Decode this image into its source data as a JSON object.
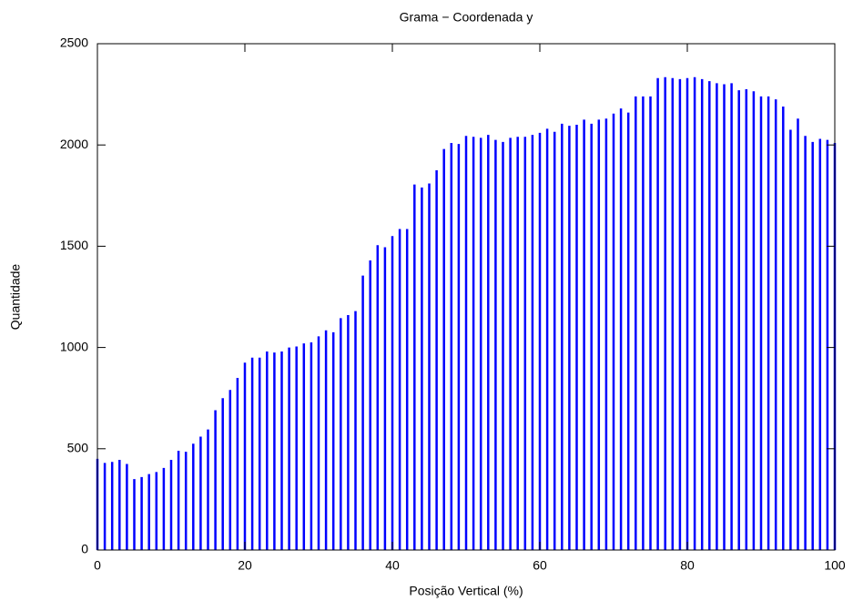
{
  "chart_data": {
    "type": "impulse",
    "title": "Grama − Coordenada y",
    "x_label": "Posição Vertical (%)",
    "y_label": "Quantidade",
    "color": "#0000ff",
    "x": [
      0,
      1,
      2,
      3,
      4,
      5,
      6,
      7,
      8,
      9,
      10,
      11,
      12,
      13,
      14,
      15,
      16,
      17,
      18,
      19,
      20,
      21,
      22,
      23,
      24,
      25,
      26,
      27,
      28,
      29,
      30,
      31,
      32,
      33,
      34,
      35,
      36,
      37,
      38,
      39,
      40,
      41,
      42,
      43,
      44,
      45,
      46,
      47,
      48,
      49,
      50,
      51,
      52,
      53,
      54,
      55,
      56,
      57,
      58,
      59,
      60,
      61,
      62,
      63,
      64,
      65,
      66,
      67,
      68,
      69,
      70,
      71,
      72,
      73,
      74,
      75,
      76,
      77,
      78,
      79,
      80,
      81,
      82,
      83,
      84,
      85,
      86,
      87,
      88,
      89,
      90,
      91,
      92,
      93,
      94,
      95,
      96,
      97,
      98,
      99,
      100
    ],
    "values": [
      450,
      430,
      435,
      445,
      425,
      350,
      360,
      375,
      385,
      405,
      445,
      490,
      485,
      525,
      560,
      595,
      690,
      750,
      790,
      850,
      925,
      950,
      950,
      980,
      975,
      980,
      1000,
      1005,
      1020,
      1025,
      1055,
      1085,
      1075,
      1145,
      1160,
      1180,
      1355,
      1430,
      1505,
      1495,
      1550,
      1585,
      1585,
      1805,
      1790,
      1810,
      1875,
      1980,
      2010,
      2005,
      2045,
      2040,
      2035,
      2050,
      2025,
      2015,
      2035,
      2040,
      2040,
      2050,
      2060,
      2080,
      2065,
      2105,
      2095,
      2100,
      2125,
      2105,
      2125,
      2130,
      2155,
      2180,
      2160,
      2240,
      2240,
      2240,
      2330,
      2335,
      2330,
      2325,
      2330,
      2335,
      2325,
      2315,
      2305,
      2300,
      2305,
      2270,
      2275,
      2265,
      2240,
      2240,
      2225,
      2190,
      2075,
      2130,
      2045,
      2015,
      2030,
      2025,
      2010
    ],
    "xlim": [
      0,
      100
    ],
    "xticks": [
      0,
      20,
      40,
      60,
      80,
      100
    ],
    "ylim": [
      0,
      2500
    ],
    "yticks": [
      0,
      500,
      1000,
      1500,
      2000,
      2500
    ]
  }
}
